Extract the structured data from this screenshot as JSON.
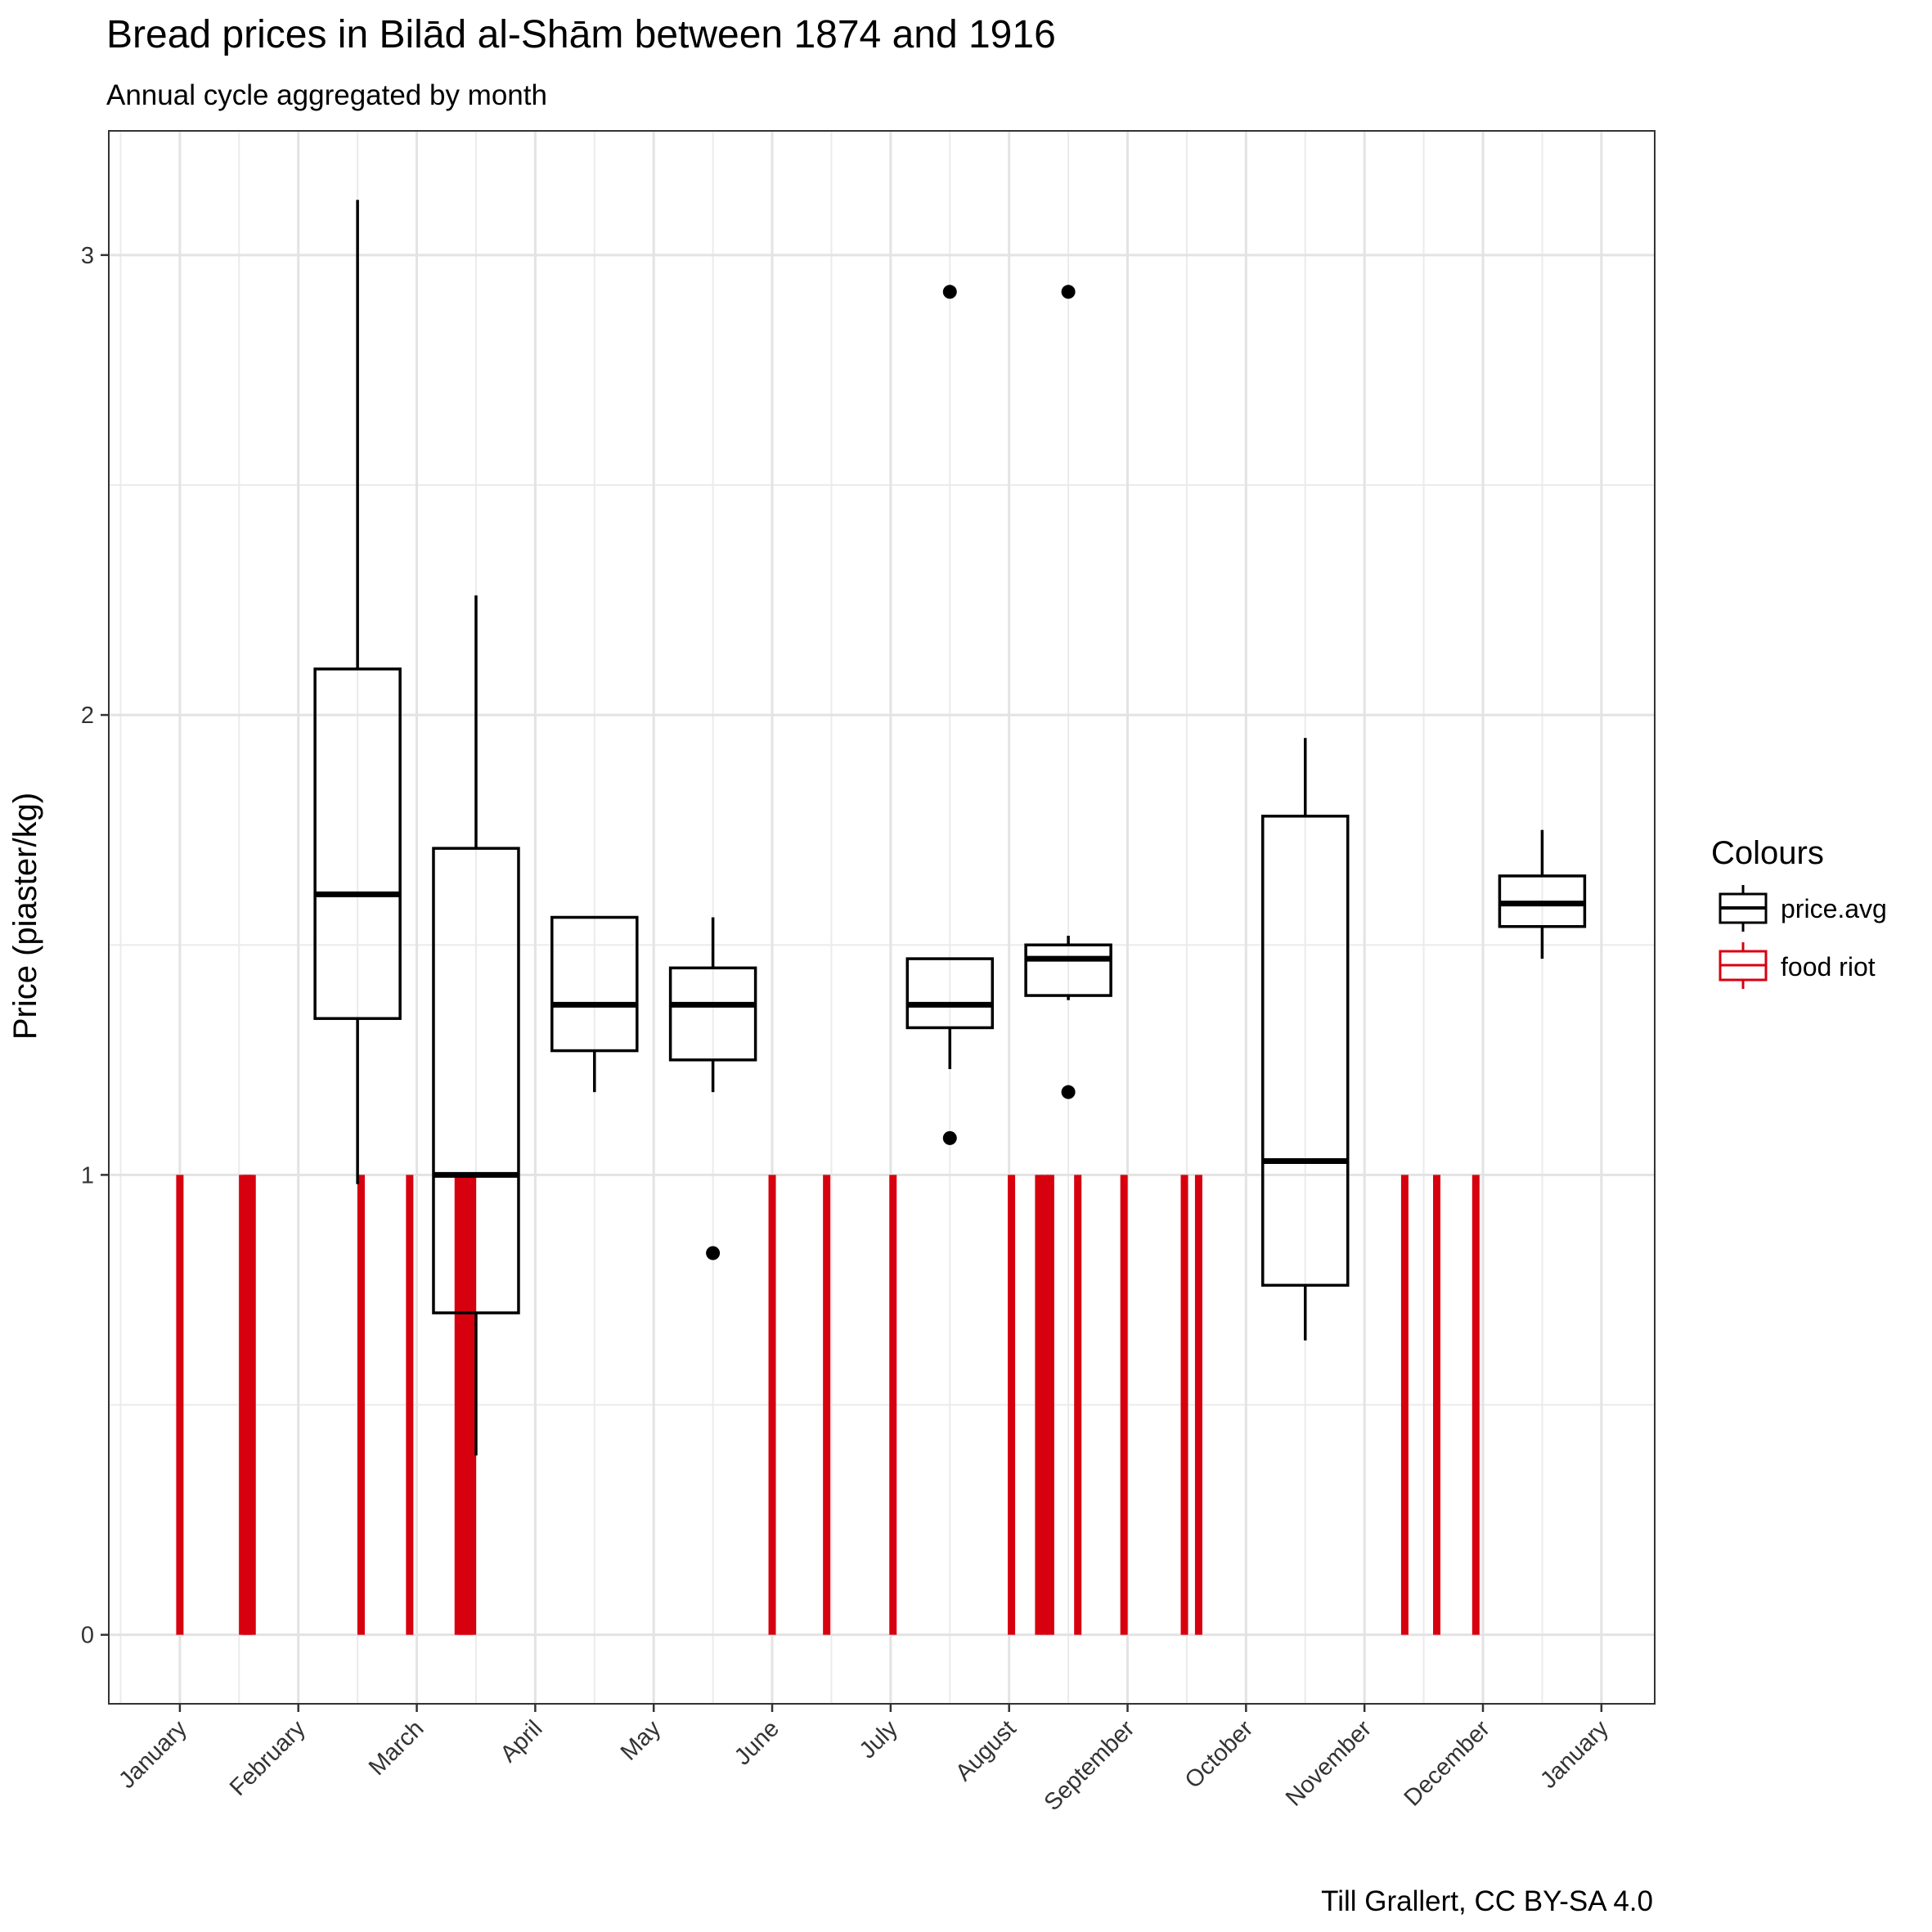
{
  "chart_data": {
    "type": "boxplot",
    "title": "Bread prices in Bilād al-Shām between 1874 and 1916",
    "subtitle": "Annual cycle aggregated by month",
    "caption": "Till Grallert, CC BY-SA 4.0",
    "xlabel": "",
    "ylabel": "Price (piaster/kg)",
    "ylim": [
      -0.15,
      3.27
    ],
    "y_ticks": [
      0,
      1,
      2,
      3
    ],
    "x_tick_labels": [
      "January",
      "February",
      "March",
      "April",
      "May",
      "June",
      "July",
      "August",
      "September",
      "October",
      "November",
      "December",
      "January"
    ],
    "x_domain_months": [
      -0.6,
      12.45
    ],
    "grid": true,
    "legend": {
      "title": "Colours",
      "position": "right",
      "entries": [
        {
          "label": "price.avg",
          "color": "#000000"
        },
        {
          "label": "food riot",
          "color": "#d7000e"
        }
      ]
    },
    "series": [
      {
        "name": "price.avg",
        "color": "#000000",
        "boxes": [
          {
            "x": 1.5,
            "min": 0.98,
            "q1": 1.34,
            "median": 1.61,
            "q3": 2.1,
            "max": 3.12,
            "outliers": []
          },
          {
            "x": 2.5,
            "min": 0.39,
            "q1": 0.7,
            "median": 1.0,
            "q3": 1.71,
            "max": 2.26,
            "outliers": []
          },
          {
            "x": 3.5,
            "min": 1.18,
            "q1": 1.27,
            "median": 1.37,
            "q3": 1.56,
            "max": 1.56,
            "outliers": []
          },
          {
            "x": 4.5,
            "min": 1.18,
            "q1": 1.25,
            "median": 1.37,
            "q3": 1.45,
            "max": 1.56,
            "outliers": [
              0.83
            ]
          },
          {
            "x": 6.5,
            "min": 1.23,
            "q1": 1.32,
            "median": 1.37,
            "q3": 1.47,
            "max": 1.47,
            "outliers": [
              2.92,
              1.08
            ]
          },
          {
            "x": 7.5,
            "min": 1.38,
            "q1": 1.39,
            "median": 1.47,
            "q3": 1.5,
            "max": 1.52,
            "outliers": [
              2.92,
              1.18
            ]
          },
          {
            "x": 9.5,
            "min": 0.64,
            "q1": 0.76,
            "median": 1.03,
            "q3": 1.78,
            "max": 1.95,
            "outliers": []
          },
          {
            "x": 11.5,
            "min": 1.47,
            "q1": 1.54,
            "median": 1.59,
            "q3": 1.65,
            "max": 1.75,
            "outliers": []
          }
        ]
      },
      {
        "name": "food riot",
        "color": "#d7000e",
        "value": 1,
        "events_month_position": [
          0.0,
          0.53,
          0.56,
          0.58,
          0.61,
          1.53,
          1.94,
          2.35,
          2.38,
          2.41,
          2.44,
          2.47,
          5.0,
          5.46,
          6.02,
          7.02,
          7.25,
          7.3,
          7.35,
          7.58,
          7.97,
          8.48,
          8.6,
          10.34,
          10.61,
          10.94
        ]
      }
    ]
  }
}
